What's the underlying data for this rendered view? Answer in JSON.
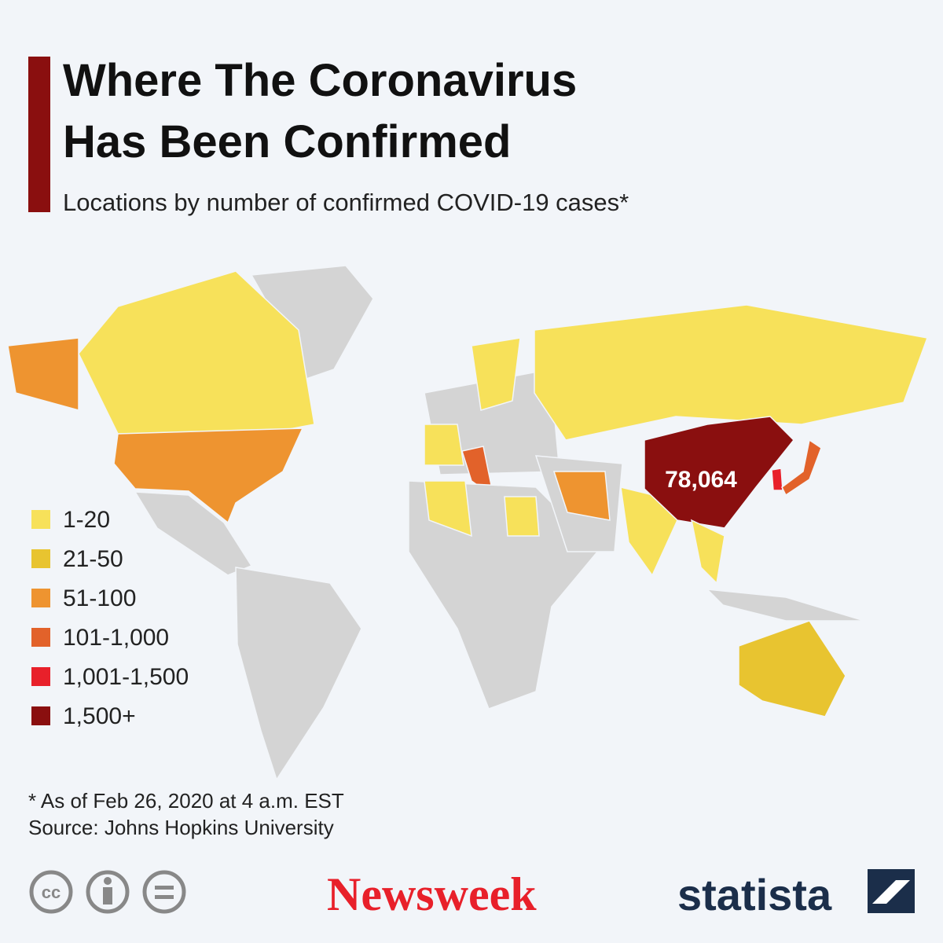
{
  "header": {
    "title_lines": [
      "Where The Coronavirus",
      "Has Been Confirmed"
    ],
    "subtitle": "Locations by number of confirmed COVID-19 cases*"
  },
  "legend": [
    {
      "label": "1-20",
      "color": "#f7e15a"
    },
    {
      "label": "21-50",
      "color": "#e8c430"
    },
    {
      "label": "51-100",
      "color": "#ee9430"
    },
    {
      "label": "101-1,000",
      "color": "#e2622a"
    },
    {
      "label": "1,001-1,500",
      "color": "#e8202a"
    },
    {
      "label": "1,500+",
      "color": "#8a0f0f"
    }
  ],
  "map": {
    "annotation": "78,064"
  },
  "footer": {
    "notes": [
      "* As of Feb 26, 2020 at 4 a.m. EST",
      "Source: Johns Hopkins University"
    ],
    "license": "cc",
    "brands": [
      "Newsweek",
      "statista"
    ]
  }
}
